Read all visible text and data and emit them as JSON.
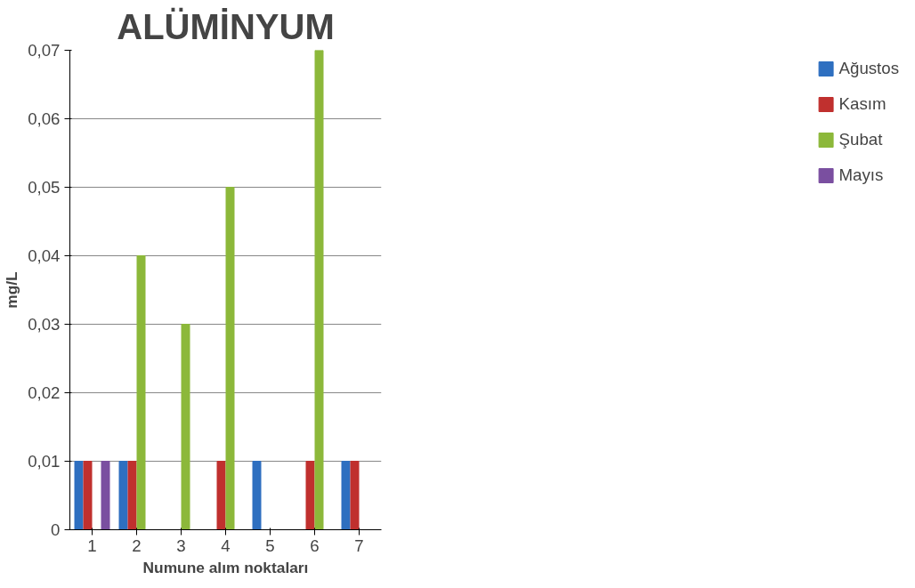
{
  "chart_data": {
    "type": "bar",
    "title": "ALÜMİNYUM",
    "xlabel": "Numune alım noktaları",
    "ylabel": "mg/L",
    "categories": [
      "1",
      "2",
      "3",
      "4",
      "5",
      "6",
      "7"
    ],
    "series": [
      {
        "name": "Ağustos",
        "color": "#2e6fc0",
        "values": [
          0.01,
          0.01,
          0,
          0,
          0.01,
          0,
          0.01
        ]
      },
      {
        "name": "Kasım",
        "color": "#c0302e",
        "values": [
          0.01,
          0.01,
          0,
          0.01,
          0,
          0.01,
          0.01
        ]
      },
      {
        "name": "Şubat",
        "color": "#8cb83a",
        "values": [
          0,
          0.04,
          0.03,
          0.05,
          0,
          0.07,
          0
        ]
      },
      {
        "name": "Mayıs",
        "color": "#7a4fa0",
        "values": [
          0.01,
          0,
          0,
          0,
          0,
          0,
          0
        ]
      }
    ],
    "ylim": [
      0,
      0.07
    ],
    "yticks": [
      0,
      {
        "value": 0.01,
        "label": "0,01"
      },
      {
        "value": 0.02,
        "label": "0,02"
      },
      {
        "value": 0.03,
        "label": "0,03"
      },
      {
        "value": 0.04,
        "label": "0,04"
      },
      {
        "value": 0.05,
        "label": "0,05"
      },
      {
        "value": 0.06,
        "label": "0,06"
      },
      {
        "value": 0.07,
        "label": "0,07"
      }
    ],
    "grid": "y",
    "legend": "right"
  }
}
